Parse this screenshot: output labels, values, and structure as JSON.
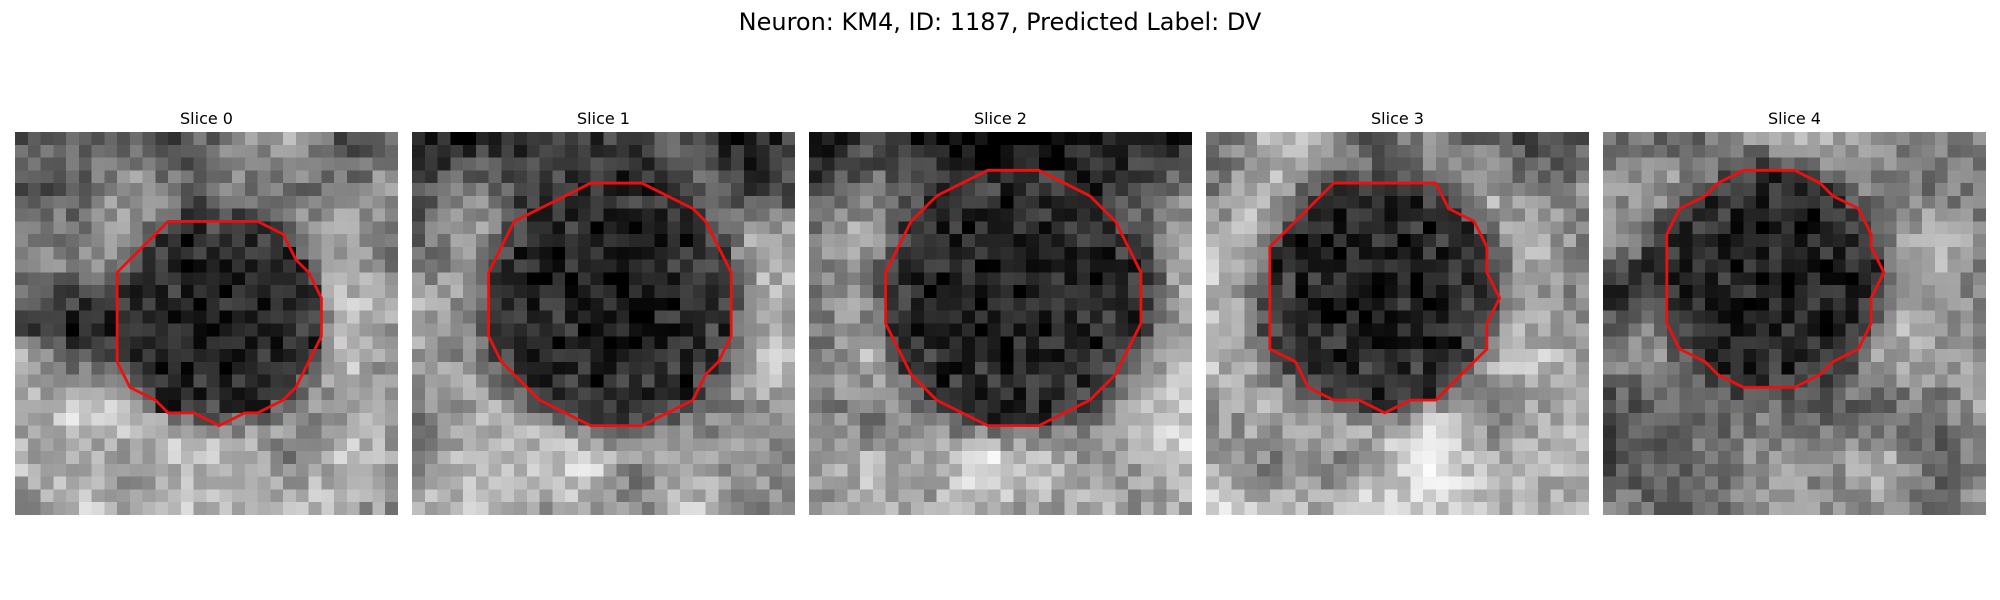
{
  "figure": {
    "title": "Neuron: KM4, ID: 1187, Predicted Label: DV"
  },
  "panels": [
    {
      "title": "Slice 0",
      "seed": 11,
      "cx": 15.7,
      "cy": 14.6,
      "r": 8.1,
      "bright_side": "bottom",
      "dark_band": "left"
    },
    {
      "title": "Slice 1",
      "seed": 23,
      "cx": 15.8,
      "cy": 13.4,
      "r": 9.6,
      "bright_side": "bottom",
      "dark_band": "top"
    },
    {
      "title": "Slice 2",
      "seed": 37,
      "cx": 15.9,
      "cy": 12.9,
      "r": 10.1,
      "bright_side": "bottom",
      "dark_band": "top"
    },
    {
      "title": "Slice 3",
      "seed": 41,
      "cx": 13.6,
      "cy": 12.6,
      "r": 9.0,
      "bright_side": "bottom",
      "dark_band": "none"
    },
    {
      "title": "Slice 4",
      "seed": 53,
      "cx": 13.1,
      "cy": 11.3,
      "r": 8.6,
      "bright_side": "top-right",
      "dark_band": "left"
    }
  ],
  "colors": {
    "contour": "#ee1010",
    "background": "#ffffff"
  }
}
